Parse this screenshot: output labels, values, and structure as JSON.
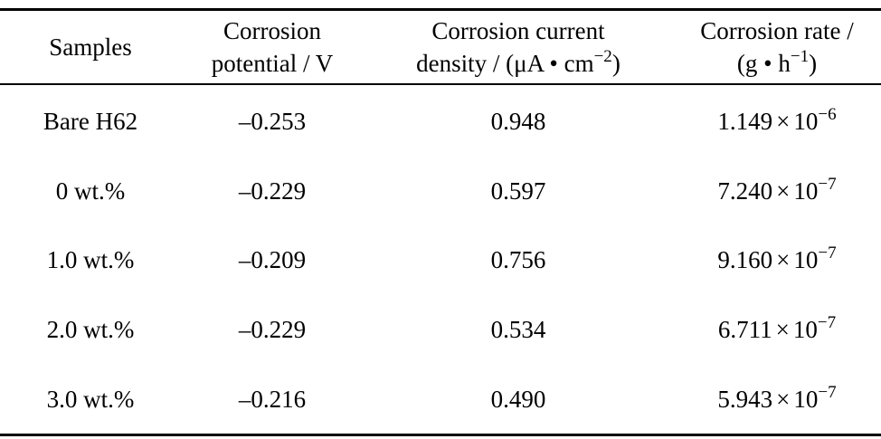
{
  "table": {
    "headers": [
      {
        "line1": "Samples",
        "line2": "",
        "sup": "",
        "tail": ""
      },
      {
        "line1": "Corrosion",
        "line2": "potential / V",
        "sup": "",
        "tail": ""
      },
      {
        "line1": "Corrosion current",
        "line2": "density / (μA • cm",
        "sup": "−2",
        "tail": ")"
      },
      {
        "line1": "Corrosion rate /",
        "line2": "(g • h",
        "sup": "−1",
        "tail": ")"
      }
    ],
    "rows": [
      {
        "sample": "Bare H62",
        "potential": "–0.253",
        "current": "0.948",
        "rate_mantissa": "1.149",
        "rate_times": "×",
        "rate_base": "10",
        "rate_exp": "−6"
      },
      {
        "sample": "0 wt.%",
        "potential": "–0.229",
        "current": "0.597",
        "rate_mantissa": "7.240",
        "rate_times": "×",
        "rate_base": "10",
        "rate_exp": "−7"
      },
      {
        "sample": "1.0 wt.%",
        "potential": "–0.209",
        "current": "0.756",
        "rate_mantissa": "9.160",
        "rate_times": "×",
        "rate_base": "10",
        "rate_exp": "−7"
      },
      {
        "sample": "2.0 wt.%",
        "potential": "–0.229",
        "current": "0.534",
        "rate_mantissa": "6.711",
        "rate_times": "×",
        "rate_base": "10",
        "rate_exp": "−7"
      },
      {
        "sample": "3.0 wt.%",
        "potential": "–0.216",
        "current": "0.490",
        "rate_mantissa": "5.943",
        "rate_times": "×",
        "rate_base": "10",
        "rate_exp": "−7"
      }
    ]
  }
}
